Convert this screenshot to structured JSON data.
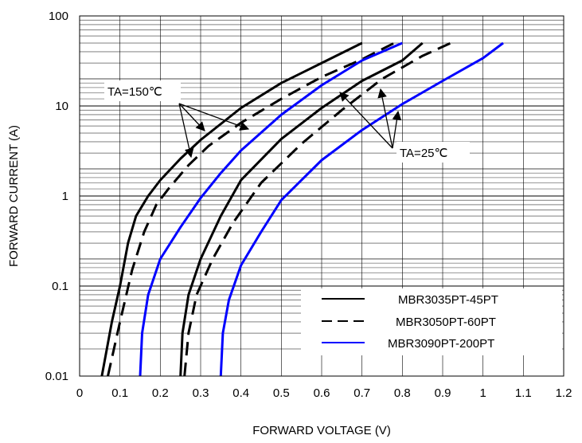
{
  "chart_data": {
    "type": "line",
    "xlabel": "FORWARD VOLTAGE (V)",
    "ylabel": "FORWARD CURRENT (A)",
    "xlim": [
      0,
      1.2
    ],
    "ylim": [
      0.01,
      100
    ],
    "yscale": "log",
    "grid": true,
    "x_ticks": [
      "0",
      "0.1",
      "0.2",
      "0.3",
      "0.4",
      "0.5",
      "0.6",
      "0.7",
      "0.8",
      "0.9",
      "1",
      "1.1",
      "1.2"
    ],
    "y_ticks": [
      "0.01",
      "0.1",
      "1",
      "10",
      "100"
    ],
    "legend": {
      "placement": "bottom-right",
      "entries": [
        {
          "label": "MBR3035PT-45PT",
          "style": "solid",
          "color": "#000000"
        },
        {
          "label": "MBR3050PT-60PT",
          "style": "dashed",
          "color": "#000000"
        },
        {
          "label": "MBR3090PT-200PT",
          "style": "solid",
          "color": "#0000ff"
        }
      ]
    },
    "annotations": [
      {
        "text": "TA=150℃"
      },
      {
        "text": "TA=25℃"
      }
    ],
    "series": [
      {
        "group": "MBR3035PT-45PT",
        "temp": "150C",
        "color": "#000000",
        "dash": "solid",
        "points": [
          [
            0.055,
            0.01
          ],
          [
            0.08,
            0.04
          ],
          [
            0.1,
            0.1
          ],
          [
            0.12,
            0.3
          ],
          [
            0.14,
            0.6
          ],
          [
            0.17,
            1.0
          ],
          [
            0.2,
            1.5
          ],
          [
            0.25,
            2.6
          ],
          [
            0.3,
            4.2
          ],
          [
            0.4,
            9.5
          ],
          [
            0.5,
            18
          ],
          [
            0.6,
            30
          ],
          [
            0.7,
            50
          ]
        ]
      },
      {
        "group": "MBR3050PT-60PT",
        "temp": "150C",
        "color": "#000000",
        "dash": "dashed",
        "points": [
          [
            0.07,
            0.01
          ],
          [
            0.1,
            0.04
          ],
          [
            0.13,
            0.15
          ],
          [
            0.16,
            0.4
          ],
          [
            0.19,
            0.8
          ],
          [
            0.22,
            1.2
          ],
          [
            0.27,
            2.2
          ],
          [
            0.32,
            3.6
          ],
          [
            0.4,
            6.5
          ],
          [
            0.5,
            12
          ],
          [
            0.6,
            21
          ],
          [
            0.7,
            33
          ],
          [
            0.78,
            50
          ]
        ]
      },
      {
        "group": "MBR3090PT-200PT",
        "temp": "150C",
        "color": "#0000ff",
        "dash": "solid",
        "points": [
          [
            0.15,
            0.01
          ],
          [
            0.155,
            0.03
          ],
          [
            0.17,
            0.08
          ],
          [
            0.2,
            0.2
          ],
          [
            0.25,
            0.45
          ],
          [
            0.3,
            0.95
          ],
          [
            0.35,
            1.8
          ],
          [
            0.4,
            3.2
          ],
          [
            0.5,
            8
          ],
          [
            0.6,
            17
          ],
          [
            0.7,
            32
          ],
          [
            0.8,
            50
          ]
        ]
      },
      {
        "group": "MBR3035PT-45PT",
        "temp": "25C",
        "color": "#000000",
        "dash": "solid",
        "points": [
          [
            0.25,
            0.01
          ],
          [
            0.255,
            0.03
          ],
          [
            0.27,
            0.08
          ],
          [
            0.3,
            0.2
          ],
          [
            0.35,
            0.6
          ],
          [
            0.4,
            1.5
          ],
          [
            0.5,
            4.3
          ],
          [
            0.6,
            9.5
          ],
          [
            0.7,
            19
          ],
          [
            0.8,
            32
          ],
          [
            0.85,
            50
          ]
        ]
      },
      {
        "group": "MBR3050PT-60PT",
        "temp": "25C",
        "color": "#000000",
        "dash": "dashed",
        "points": [
          [
            0.26,
            0.01
          ],
          [
            0.27,
            0.03
          ],
          [
            0.29,
            0.08
          ],
          [
            0.33,
            0.2
          ],
          [
            0.38,
            0.5
          ],
          [
            0.45,
            1.4
          ],
          [
            0.55,
            3.8
          ],
          [
            0.65,
            9
          ],
          [
            0.75,
            20
          ],
          [
            0.85,
            36
          ],
          [
            0.92,
            50
          ]
        ]
      },
      {
        "group": "MBR3090PT-200PT",
        "temp": "25C",
        "color": "#0000ff",
        "dash": "solid",
        "points": [
          [
            0.35,
            0.01
          ],
          [
            0.355,
            0.03
          ],
          [
            0.37,
            0.07
          ],
          [
            0.4,
            0.17
          ],
          [
            0.45,
            0.4
          ],
          [
            0.5,
            0.9
          ],
          [
            0.6,
            2.5
          ],
          [
            0.7,
            5.4
          ],
          [
            0.8,
            10.5
          ],
          [
            0.9,
            19
          ],
          [
            1.0,
            34
          ],
          [
            1.05,
            50
          ]
        ]
      }
    ]
  }
}
